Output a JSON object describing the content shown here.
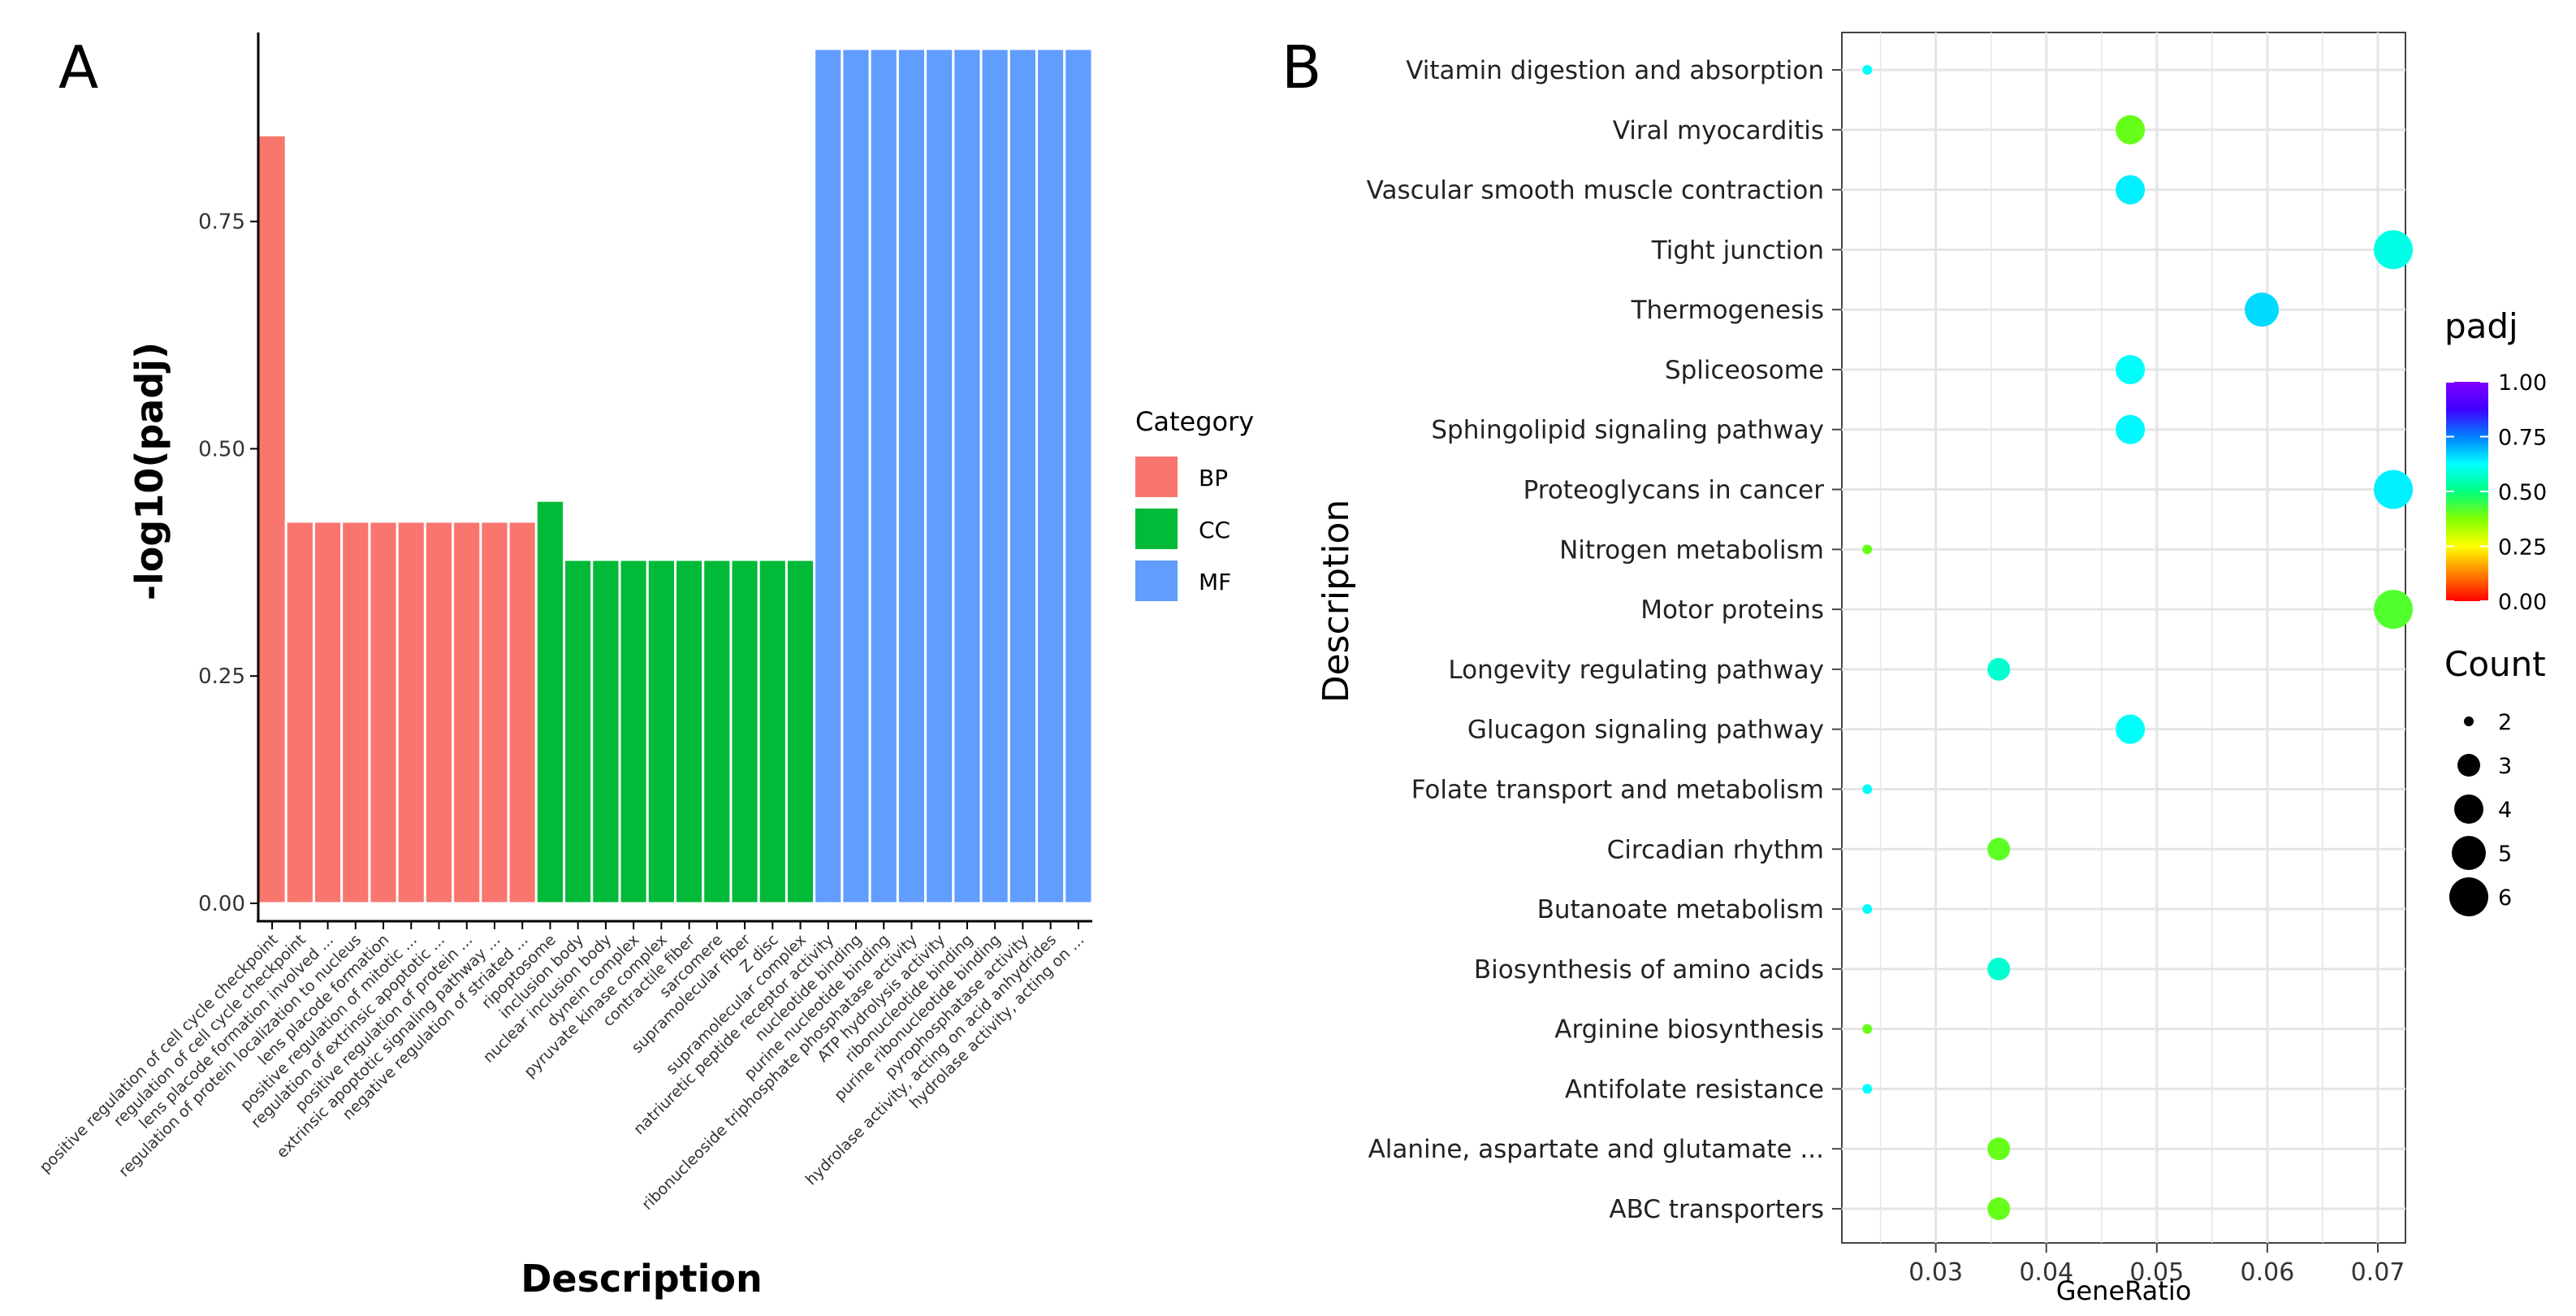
{
  "panels": {
    "a_label": "A",
    "b_label": "B"
  },
  "colors": {
    "BP": "#F8766D",
    "CC": "#00BA38",
    "MF": "#619CFF",
    "grid": "#e5e5e5",
    "axis": "#000000",
    "text": "#222222"
  },
  "chart_data": [
    {
      "type": "bar",
      "xlabel": "Description",
      "ylabel": "-log10(padj)",
      "ylim": [
        0,
        0.94
      ],
      "yticks": [
        "0.00",
        "0.25",
        "0.50",
        "0.75"
      ],
      "ytick_values": [
        0,
        0.25,
        0.5,
        0.75
      ],
      "legend": {
        "title": "Category",
        "placement": "right",
        "entries": [
          "BP",
          "CC",
          "MF"
        ]
      },
      "categories": [
        "positive regulation of cell cycle checkpoint",
        "regulation of cell cycle checkpoint",
        "lens placode formation involved ...",
        "regulation of protein localization to nucleus",
        "lens placode formation",
        "positive regulation of mitotic ...",
        "regulation of extrinsic apoptotic ...",
        "positive regulation of protein ...",
        "extrinsic apoptotic signaling pathway ...",
        "negative regulation of striated ...",
        "ripoptosome",
        "inclusion body",
        "nuclear inclusion body",
        "dynein complex",
        "pyruvate kinase complex",
        "contractile fiber",
        "sarcomere",
        "supramolecular fiber",
        "Z disc",
        "supramolecular complex",
        "natriuretic peptide receptor activity",
        "nucleotide binding",
        "purine nucleotide binding",
        "ribonucleoside triphosphate phosphatase activity",
        "ATP hydrolysis activity",
        "ribonucleotide binding",
        "purine ribonucleotide binding",
        "pyrophosphatase activity",
        "hydrolase activity, acting on acid anhydrides",
        "hydrolase activity, acting on ..."
      ],
      "groups": [
        "BP",
        "BP",
        "BP",
        "BP",
        "BP",
        "BP",
        "BP",
        "BP",
        "BP",
        "BP",
        "CC",
        "CC",
        "CC",
        "CC",
        "CC",
        "CC",
        "CC",
        "CC",
        "CC",
        "CC",
        "MF",
        "MF",
        "MF",
        "MF",
        "MF",
        "MF",
        "MF",
        "MF",
        "MF",
        "MF"
      ],
      "values": [
        0.845,
        0.42,
        0.42,
        0.42,
        0.42,
        0.42,
        0.42,
        0.42,
        0.42,
        0.42,
        0.443,
        0.378,
        0.378,
        0.378,
        0.378,
        0.378,
        0.378,
        0.378,
        0.378,
        0.378,
        0.94,
        0.94,
        0.94,
        0.94,
        0.94,
        0.94,
        0.94,
        0.94,
        0.94,
        0.94
      ]
    },
    {
      "type": "scatter",
      "xlabel": "GeneRatio",
      "ylabel": "Description",
      "xlim": [
        0.0215,
        0.0725
      ],
      "xticks": [
        "0.03",
        "0.04",
        "0.05",
        "0.06",
        "0.07"
      ],
      "xtick_values": [
        0.03,
        0.04,
        0.05,
        0.06,
        0.07
      ],
      "grid": true,
      "categories": [
        "Vitamin digestion and absorption",
        "Viral myocarditis",
        "Vascular smooth muscle contraction",
        "Tight junction",
        "Thermogenesis",
        "Spliceosome",
        "Sphingolipid signaling pathway",
        "Proteoglycans in cancer",
        "Nitrogen metabolism",
        "Motor proteins",
        "Longevity regulating pathway",
        "Glucagon signaling pathway",
        "Folate transport and metabolism",
        "Circadian rhythm",
        "Butanoate metabolism",
        "Biosynthesis of amino acids",
        "Arginine biosynthesis",
        "Antifolate resistance",
        "Alanine, aspartate and glutamate ...",
        "ABC transporters"
      ],
      "x": [
        0.0238,
        0.0476,
        0.0476,
        0.0714,
        0.0595,
        0.0476,
        0.0476,
        0.0714,
        0.0238,
        0.0714,
        0.0357,
        0.0476,
        0.0238,
        0.0357,
        0.0238,
        0.0357,
        0.0238,
        0.0238,
        0.0357,
        0.0357
      ],
      "count": [
        2,
        4,
        4,
        6,
        5,
        4,
        4,
        6,
        2,
        6,
        3,
        4,
        2,
        3,
        2,
        3,
        2,
        2,
        3,
        3
      ],
      "padj": [
        0.62,
        0.4,
        0.64,
        0.6,
        0.66,
        0.62,
        0.63,
        0.64,
        0.4,
        0.42,
        0.58,
        0.62,
        0.62,
        0.41,
        0.62,
        0.58,
        0.4,
        0.62,
        0.4,
        0.4
      ],
      "color_legend": {
        "title": "padj",
        "ticks": [
          "0.00",
          "0.25",
          "0.50",
          "0.75",
          "1.00"
        ],
        "tick_values": [
          0,
          0.25,
          0.5,
          0.75,
          1.0
        ],
        "placement": "right"
      },
      "size_legend": {
        "title": "Count",
        "entries": [
          "2",
          "3",
          "4",
          "5",
          "6"
        ],
        "values": [
          2,
          3,
          4,
          5,
          6
        ],
        "placement": "right"
      }
    }
  ]
}
